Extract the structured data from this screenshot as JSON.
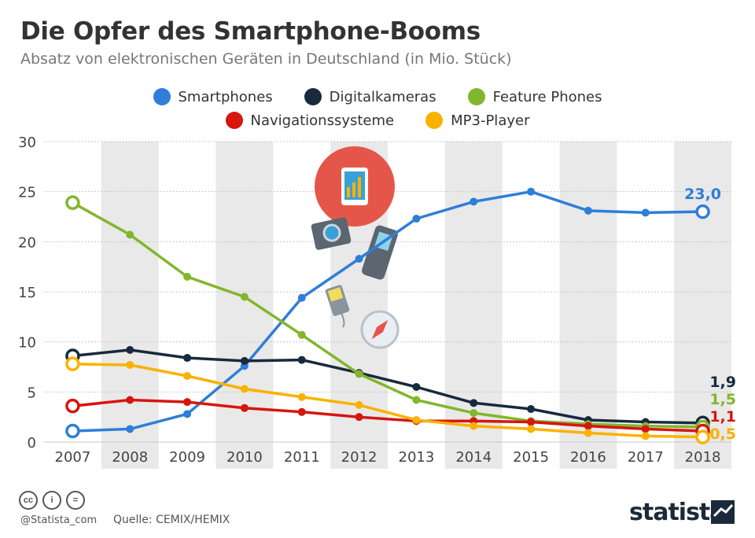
{
  "title": "Die Opfer des Smartphone-Booms",
  "subtitle": "Absatz von elektronischen Geräten in Deutschland (in Mio. Stück)",
  "footer": {
    "handle": "@Statista_com",
    "source": "Quelle: CEMIX/HEMIX",
    "brand": "statista",
    "license_icons": [
      "cc-icon",
      "attribution-icon",
      "no-derivatives-icon"
    ]
  },
  "colors": {
    "Smartphones": "#2f7ed8",
    "Digitalkameras": "#172a3e",
    "Feature Phones": "#82b62c",
    "Navigationssysteme": "#d6160f",
    "MP3-Player": "#f9b200",
    "band": "#e9e9e9"
  },
  "chart_data": {
    "type": "line",
    "x": [
      "2007",
      "2008",
      "2009",
      "2010",
      "2011",
      "2012",
      "2013",
      "2014",
      "2015",
      "2016",
      "2017",
      "2018"
    ],
    "ylim": [
      0,
      30
    ],
    "yticks": [
      0,
      5,
      10,
      15,
      20,
      25,
      30
    ],
    "legend_position": "top-center",
    "legend_rows": [
      [
        "Smartphones",
        "Digitalkameras",
        "Feature Phones"
      ],
      [
        "Navigationssysteme",
        "MP3-Player"
      ]
    ],
    "series": [
      {
        "name": "Smartphones",
        "values": [
          1.1,
          1.3,
          2.8,
          7.6,
          14.4,
          18.3,
          22.3,
          24.0,
          25.0,
          23.1,
          22.9,
          23.0
        ],
        "end_label": "23,0"
      },
      {
        "name": "Digitalkameras",
        "values": [
          8.6,
          9.2,
          8.4,
          8.1,
          8.2,
          6.9,
          5.5,
          3.9,
          3.3,
          2.2,
          2.0,
          1.9
        ],
        "end_label": "1,9"
      },
      {
        "name": "Feature Phones",
        "values": [
          23.9,
          20.7,
          16.5,
          14.5,
          10.7,
          6.8,
          4.2,
          2.9,
          2.1,
          1.8,
          1.6,
          1.5
        ],
        "end_label": "1,5"
      },
      {
        "name": "Navigationssysteme",
        "values": [
          3.6,
          4.2,
          4.0,
          3.4,
          3.0,
          2.5,
          2.1,
          2.1,
          2.0,
          1.6,
          1.3,
          1.1
        ],
        "end_label": "1,1"
      },
      {
        "name": "MP3-Player",
        "values": [
          7.8,
          7.7,
          6.6,
          5.3,
          4.5,
          3.7,
          2.2,
          1.6,
          1.3,
          0.9,
          0.6,
          0.5
        ],
        "end_label": "0,5"
      }
    ],
    "end_label_order": [
      "Digitalkameras",
      "Feature Phones",
      "Navigationssysteme",
      "MP3-Player"
    ]
  }
}
